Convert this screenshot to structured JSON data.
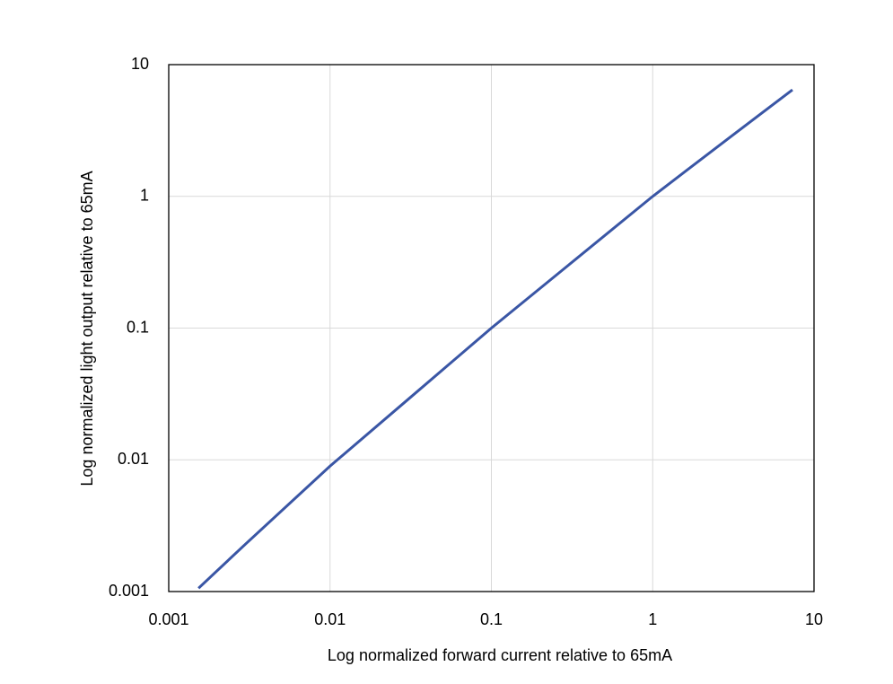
{
  "chart_data": {
    "type": "line",
    "x_label": "Log normalized forward current relative to 65mA",
    "y_label": "Log normalized light output  relative to 65mA",
    "x": [
      0.00153,
      0.003,
      0.01,
      0.03,
      0.1,
      0.3,
      1,
      3,
      7.35
    ],
    "series": [
      {
        "color": "#3a56a5",
        "values": [
          0.00106,
          0.0023,
          0.00896,
          0.0283,
          0.1,
          0.3,
          1,
          2.8,
          6.44
        ]
      }
    ],
    "xlim": [
      0.001,
      10
    ],
    "ylim": [
      0.001,
      10
    ],
    "xticks": [
      0.001,
      0.01,
      0.1,
      1,
      10
    ],
    "yticks": [
      0.001,
      0.01,
      0.1,
      1,
      10
    ],
    "xscale": "log",
    "yscale": "log",
    "grid": true
  }
}
